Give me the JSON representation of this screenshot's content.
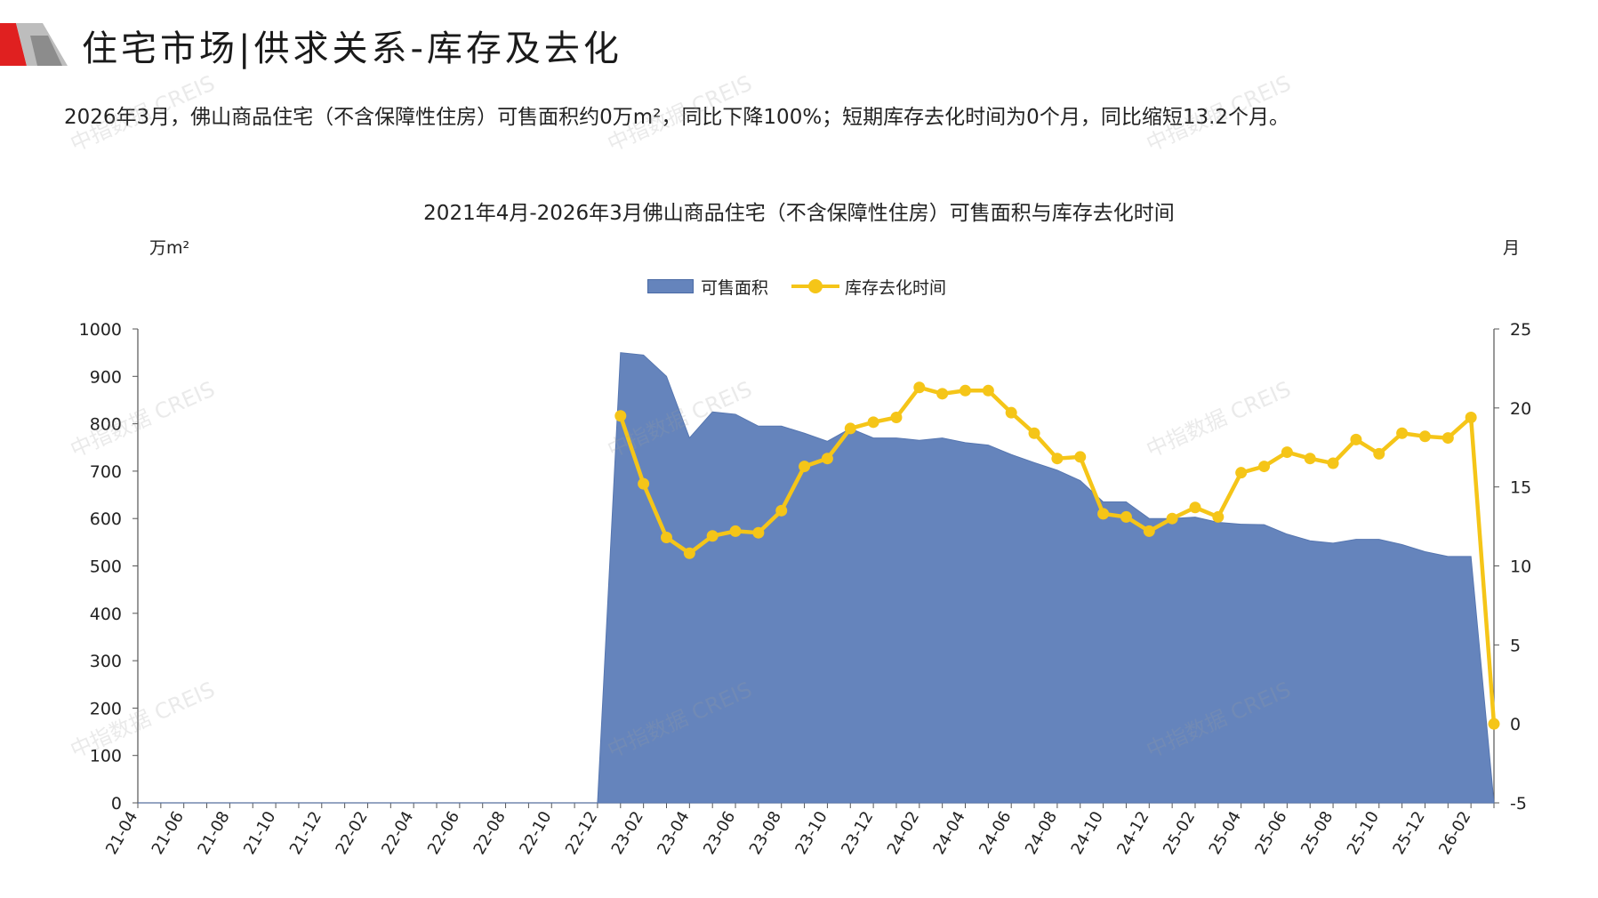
{
  "header": {
    "title": "住宅市场|供求关系-库存及去化",
    "summary": "2026年3月，佛山商品住宅（不含保障性住房）可售面积约0万m²，同比下降100%；短期库存去化时间为0个月，同比缩短13.2个月。"
  },
  "watermark": {
    "text": "中指数据 CREIS"
  },
  "colors": {
    "area_fill": "#6584BC",
    "line": "#F5C518",
    "brand_red": "#E02020",
    "brand_grey": "#9A9A9A"
  },
  "chart_data": {
    "type": "area",
    "title": "2021年4月-2026年3月佛山商品住宅（不含保障性住房）可售面积与库存去化时间",
    "y_left_unit": "万m²",
    "y_right_unit": "月",
    "ylim_left": [
      0,
      1000
    ],
    "ylim_right": [
      -5,
      25
    ],
    "yticks_left": [
      "0",
      "100",
      "200",
      "300",
      "400",
      "500",
      "600",
      "700",
      "800",
      "900",
      "1000"
    ],
    "yticks_right": [
      "-5",
      "0",
      "5",
      "10",
      "15",
      "20",
      "25"
    ],
    "legend": {
      "area": "可售面积",
      "line": "库存去化时间"
    },
    "categories": [
      "21-04",
      "21-05",
      "21-06",
      "21-07",
      "21-08",
      "21-09",
      "21-10",
      "21-11",
      "21-12",
      "22-01",
      "22-02",
      "22-03",
      "22-04",
      "22-05",
      "22-06",
      "22-07",
      "22-08",
      "22-09",
      "22-10",
      "22-11",
      "22-12",
      "23-01",
      "23-02",
      "23-03",
      "23-04",
      "23-05",
      "23-06",
      "23-07",
      "23-08",
      "23-09",
      "23-10",
      "23-11",
      "23-12",
      "24-01",
      "24-02",
      "24-03",
      "24-04",
      "24-05",
      "24-06",
      "24-07",
      "24-08",
      "24-09",
      "24-10",
      "24-11",
      "24-12",
      "25-01",
      "25-02",
      "25-03",
      "25-04",
      "25-05",
      "25-06",
      "25-07",
      "25-08",
      "25-09",
      "25-10",
      "25-11",
      "25-12",
      "26-01",
      "26-02",
      "26-03"
    ],
    "xtick_labels": [
      "21-04",
      "21-06",
      "21-08",
      "21-10",
      "21-12",
      "22-02",
      "22-04",
      "22-06",
      "22-08",
      "22-10",
      "22-12",
      "23-02",
      "23-04",
      "23-06",
      "23-08",
      "23-10",
      "23-12",
      "24-02",
      "24-04",
      "24-06",
      "24-08",
      "24-10",
      "24-12",
      "25-02",
      "25-04",
      "25-06",
      "25-08",
      "25-10",
      "25-12",
      "26-02"
    ],
    "series": [
      {
        "name": "可售面积",
        "type": "area",
        "axis": "left",
        "values": [
          0,
          0,
          0,
          0,
          0,
          0,
          0,
          0,
          0,
          0,
          0,
          0,
          0,
          0,
          0,
          0,
          0,
          0,
          0,
          0,
          0,
          950,
          945,
          900,
          770,
          825,
          820,
          795,
          795,
          780,
          763,
          790,
          770,
          770,
          765,
          770,
          760,
          755,
          735,
          718,
          702,
          680,
          635,
          635,
          600,
          600,
          603,
          592,
          588,
          587,
          567,
          553,
          548,
          556,
          556,
          545,
          530,
          520,
          520,
          0
        ]
      },
      {
        "name": "库存去化时间",
        "type": "line",
        "axis": "right",
        "values": [
          null,
          null,
          null,
          null,
          null,
          null,
          null,
          null,
          null,
          null,
          null,
          null,
          null,
          null,
          null,
          null,
          null,
          null,
          null,
          null,
          null,
          19.5,
          15.2,
          11.8,
          10.8,
          11.9,
          12.2,
          12.1,
          13.5,
          16.3,
          16.8,
          18.7,
          19.1,
          19.4,
          21.3,
          20.9,
          21.1,
          21.1,
          19.7,
          18.4,
          16.8,
          16.9,
          13.3,
          13.1,
          12.2,
          13.0,
          13.7,
          13.1,
          15.9,
          16.3,
          17.2,
          16.8,
          16.5,
          18.0,
          17.1,
          18.4,
          18.2,
          18.1,
          19.4,
          0.0
        ]
      }
    ]
  }
}
